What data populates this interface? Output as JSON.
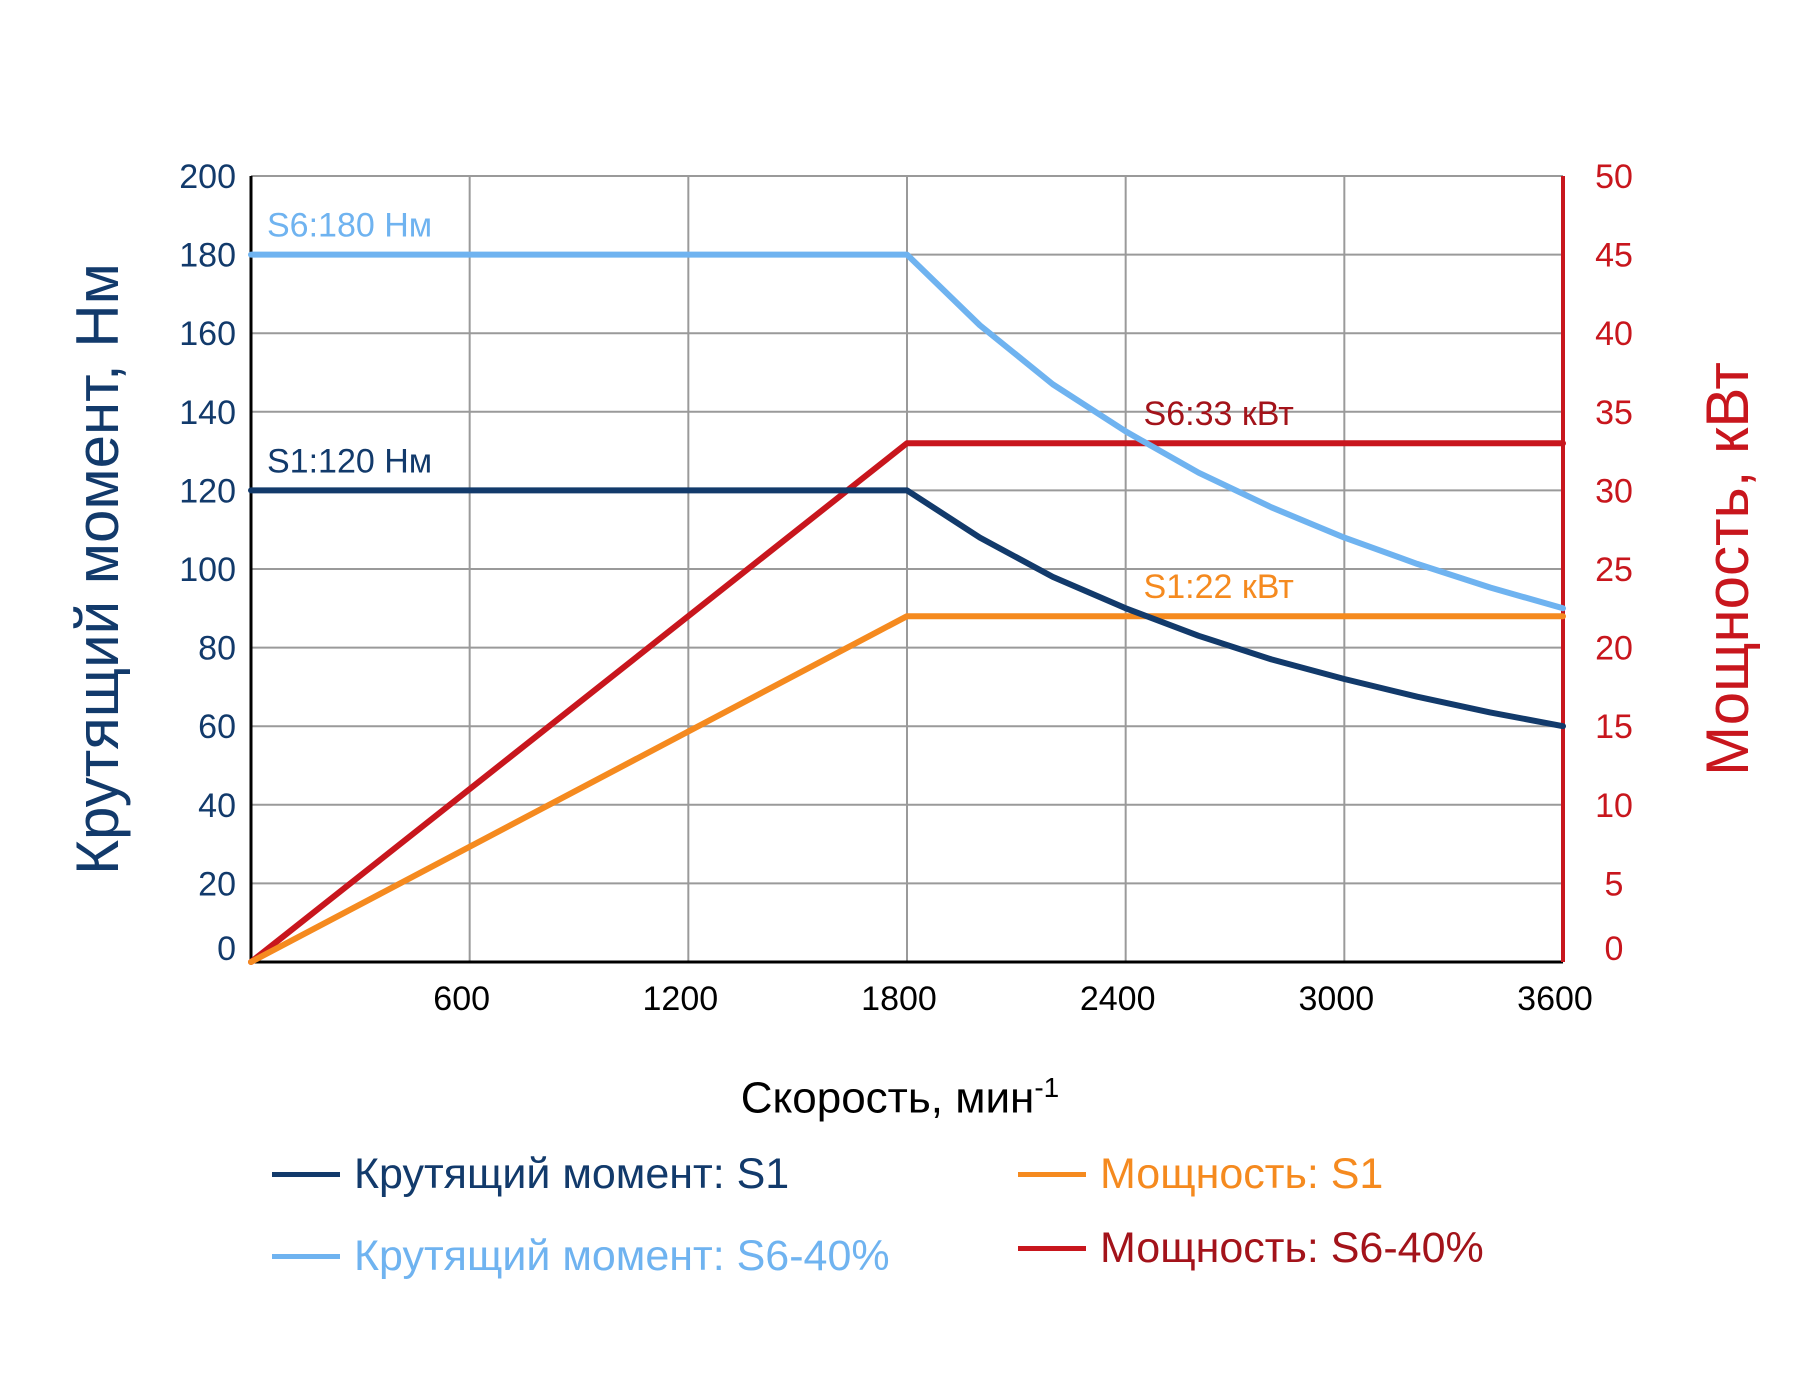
{
  "chart_data": {
    "type": "line",
    "xlabel": "Скорость, мин",
    "xlabel_superscript": "-1",
    "ylabel_left": "Крутящий момент, Нм",
    "ylabel_right": "Мощность, кВт",
    "xlim": [
      0,
      3600
    ],
    "ylim_left": [
      0,
      200
    ],
    "ylim_right": [
      0,
      50
    ],
    "x_ticks": [
      "600",
      "1200",
      "1800",
      "2400",
      "3000",
      "3600"
    ],
    "y_ticks_left": [
      "0",
      "20",
      "40",
      "60",
      "80",
      "100",
      "120",
      "140",
      "160",
      "180",
      "200"
    ],
    "y_ticks_right": [
      "0",
      "5",
      "10",
      "15",
      "20",
      "25",
      "30",
      "35",
      "40",
      "45",
      "50"
    ],
    "grid": true,
    "legend_position": "bottom",
    "series": [
      {
        "name": "Крутящий момент: S1",
        "axis": "left",
        "color": "#123a6b",
        "x": [
          0,
          1800,
          2000,
          2200,
          2400,
          2600,
          2800,
          3000,
          3200,
          3400,
          3600
        ],
        "y": [
          120,
          120,
          108,
          98,
          90,
          83,
          77,
          72,
          67.5,
          63.5,
          60
        ]
      },
      {
        "name": "Крутящий момент: S6-40%",
        "axis": "left",
        "color": "#6fb3f0",
        "x": [
          0,
          1800,
          2000,
          2200,
          2400,
          2600,
          2800,
          3000,
          3200,
          3400,
          3600
        ],
        "y": [
          180,
          180,
          162,
          147,
          135,
          124.5,
          115.7,
          108,
          101.3,
          95.3,
          90
        ]
      },
      {
        "name": "Мощность: S1",
        "axis": "right",
        "color": "#f58a1f",
        "x": [
          0,
          1800,
          3600
        ],
        "y": [
          0,
          22,
          22
        ]
      },
      {
        "name": "Мощность: S6-40%",
        "axis": "right",
        "color": "#c8161d",
        "x": [
          0,
          1800,
          3600
        ],
        "y": [
          0,
          33,
          33
        ]
      }
    ],
    "annotations": [
      {
        "text": "S6:180 Нм",
        "x": 0,
        "y": 180,
        "axis": "left",
        "color": "#6fb3f0"
      },
      {
        "text": "S1:120 Нм",
        "x": 0,
        "y": 120,
        "axis": "left",
        "color": "#123a6b"
      },
      {
        "text": "S6:33 кВт",
        "x": 2600,
        "y": 33,
        "axis": "right",
        "color": "#a3131a"
      },
      {
        "text": "S1:22 кВт",
        "x": 2600,
        "y": 22,
        "axis": "right",
        "color": "#f58a1f"
      }
    ]
  },
  "legend": {
    "items": [
      {
        "label": "Крутящий момент: S1",
        "color": "#123a6b"
      },
      {
        "label": "Мощность: S1",
        "color": "#f58a1f"
      },
      {
        "label": "Крутящий момент: S6-40%",
        "color": "#6fb3f0"
      },
      {
        "label": "Мощность: S6-40%",
        "color": "#a3131a"
      }
    ]
  },
  "colors": {
    "left_axis": "#123a6b",
    "right_axis": "#c8161d",
    "grid": "#9a9a9a"
  }
}
